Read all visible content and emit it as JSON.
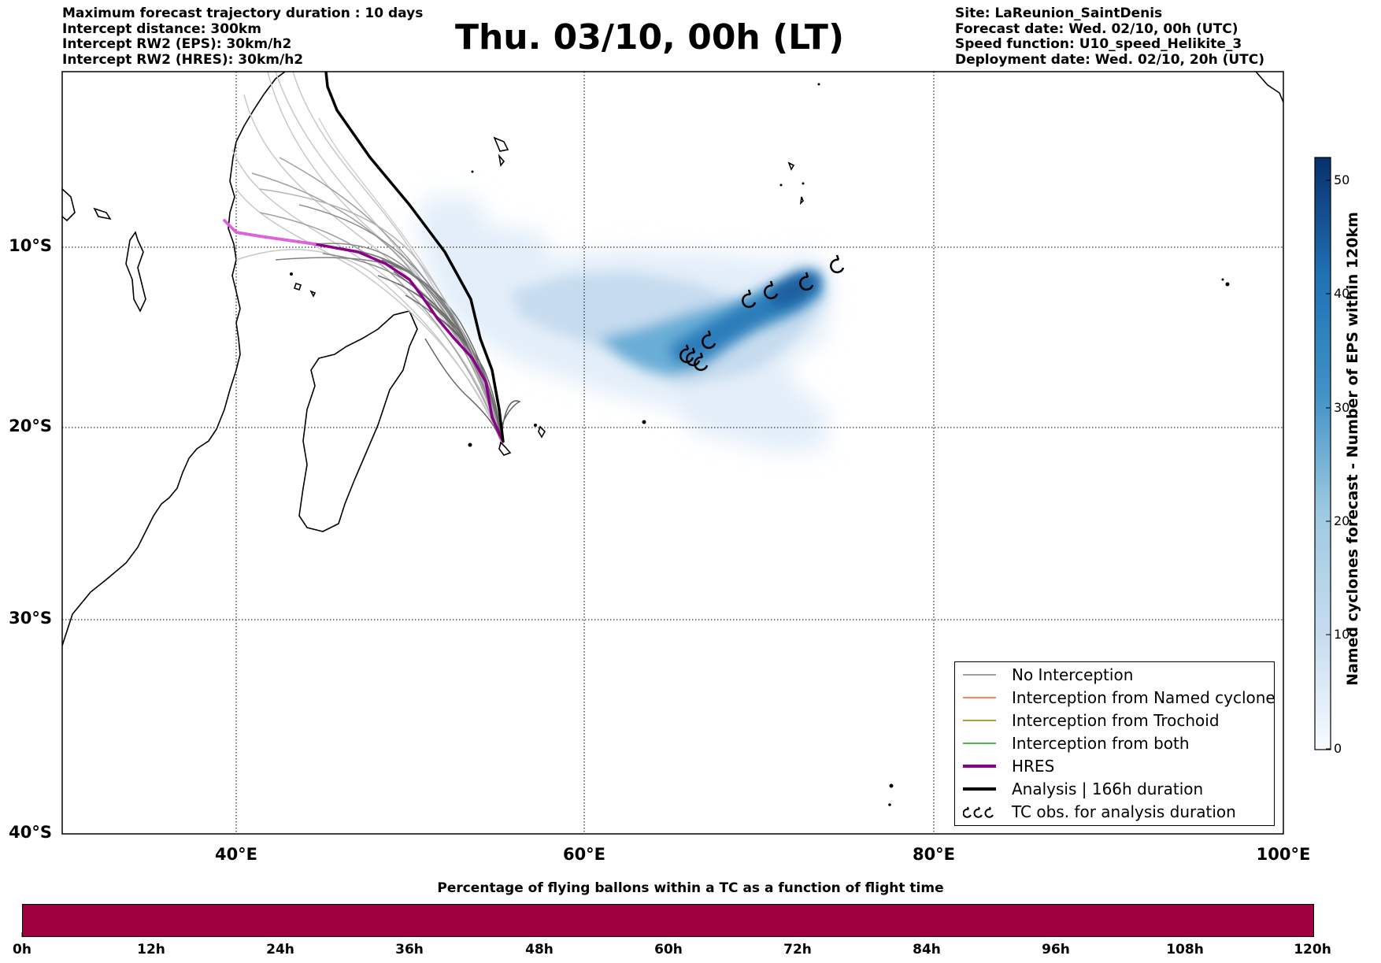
{
  "header_left": [
    "Maximum forecast trajectory duration : 10 days",
    "Intercept distance: 300km",
    "Intercept RW2 (EPS):  30km/h2",
    "Intercept RW2 (HRES): 30km/h2"
  ],
  "header_right": [
    "Site: LaReunion_SaintDenis",
    "Forecast date: Wed. 02/10, 00h (UTC)",
    "Speed function: U10_speed_Helikite_3",
    "Deployment date: Wed. 02/10, 20h (UTC)"
  ],
  "title": "Thu. 03/10, 00h (LT)",
  "map": {
    "lon_range": [
      30,
      100
    ],
    "lat_range": [
      -40,
      0
    ],
    "lat_labels": [
      "10°S",
      "20°S",
      "30°S",
      "40°S"
    ],
    "lon_labels": [
      "40°E",
      "60°E",
      "80°E",
      "100°E"
    ],
    "grid": "dotted",
    "launch_site": "LaReunion_SaintDenis"
  },
  "legend": {
    "items": [
      {
        "label": "No Interception",
        "color": "#808080",
        "style": "thin-line"
      },
      {
        "label": "Interception from Named cyclone",
        "color": "#ff5a1e",
        "style": "thin-line"
      },
      {
        "label": "Interception from Trochoid",
        "color": "#8c8200",
        "style": "thin-line"
      },
      {
        "label": "Interception from both",
        "color": "#14a014",
        "style": "thin-line"
      },
      {
        "label": "HRES",
        "color": "#8b008b",
        "style": "thick-line"
      },
      {
        "label": "Analysis | 166h duration",
        "color": "#000000",
        "style": "thick-line"
      },
      {
        "label": "TC obs. for analysis duration",
        "color": "#000000",
        "style": "tc-symbols"
      }
    ]
  },
  "colorbar": {
    "title": "Named cyclones forecast - Number of EPS within 120km",
    "ticks": [
      "0",
      "10",
      "20",
      "30",
      "40",
      "50"
    ],
    "range": [
      0,
      52
    ],
    "colormap": "Blues"
  },
  "flight_bar": {
    "title": "Percentage of flying ballons within a TC as a function of flight time",
    "color": "#a00040",
    "ticks": [
      "0h",
      "12h",
      "24h",
      "36h",
      "48h",
      "60h",
      "72h",
      "84h",
      "96h",
      "108h",
      "120h"
    ]
  },
  "chart_data": {
    "type": "line",
    "title": "Thu. 03/10, 00h (LT)",
    "xlabel": "",
    "ylabel": "",
    "xlim": [
      30,
      100
    ],
    "ylim": [
      -40,
      0
    ],
    "series": [
      {
        "name": "HRES",
        "x": [
          55.4,
          55.0,
          54.5,
          53.5,
          52.0,
          50.8,
          49.2,
          47.0,
          44.5,
          41.0,
          39.5
        ],
        "y": [
          -20.9,
          -19.5,
          -17.5,
          -15.5,
          -14.0,
          -12.5,
          -11.2,
          -10.5,
          -10.0,
          -9.5,
          -8.2
        ]
      },
      {
        "name": "Analysis | 166h duration",
        "x": [
          55.4,
          55.2,
          54.5,
          53.5,
          52.8,
          51.2,
          49.0,
          46.5,
          45.5,
          45.2
        ],
        "y": [
          -20.9,
          -19.0,
          -16.0,
          -14.0,
          -12.0,
          -9.5,
          -7.0,
          -4.3,
          -1.6,
          0
        ]
      }
    ],
    "tc_obs": [
      {
        "lon": 74.8,
        "lat": -11.3
      },
      {
        "lon": 73.1,
        "lat": -12.3
      },
      {
        "lon": 71.1,
        "lat": -12.8
      },
      {
        "lon": 69.8,
        "lat": -13.3
      },
      {
        "lon": 67.5,
        "lat": -15.6
      },
      {
        "lon": 66.2,
        "lat": -16.4
      },
      {
        "lon": 66.6,
        "lat": -16.5
      },
      {
        "lon": 67.0,
        "lat": -16.8
      }
    ]
  }
}
